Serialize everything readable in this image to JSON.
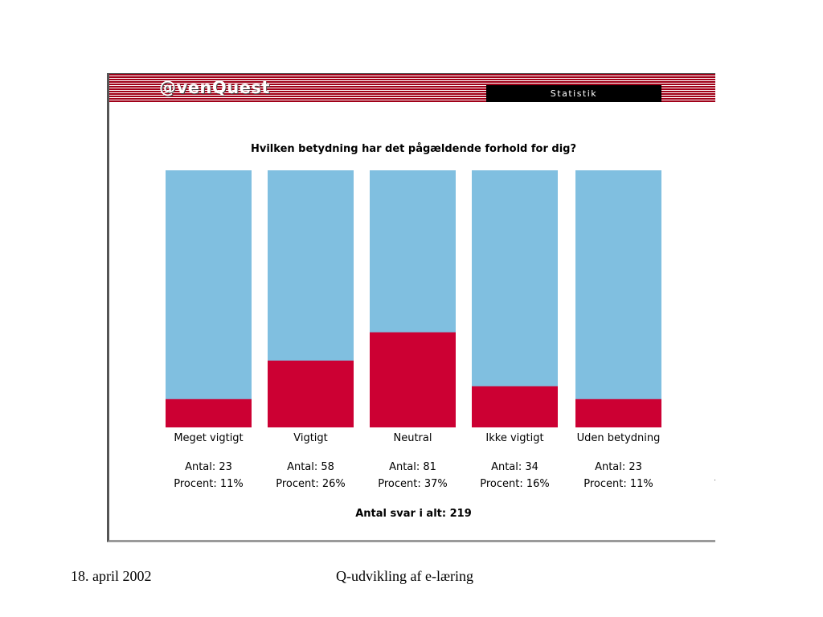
{
  "header": {
    "logo_text": "@venQuest",
    "tab_label": "Statistik"
  },
  "chart_data": {
    "type": "bar",
    "stacked_percent": true,
    "title": "Hvilken betydning har det pågældende forhold for dig?",
    "categories": [
      "Meget vigtigt",
      "Vigtigt",
      "Neutral",
      "Ikke vigtigt",
      "Uden betydning"
    ],
    "values": [
      23,
      58,
      81,
      34,
      23
    ],
    "percents": [
      11,
      26,
      37,
      16,
      11
    ],
    "count_label": "Antal:",
    "percent_label": "Procent:",
    "total_label": "Antal svar i alt:",
    "total": 219,
    "ylim": [
      0,
      100
    ],
    "colors": {
      "value": "#cc0033",
      "remainder": "#80bfe0"
    }
  },
  "footer": {
    "date": "18. april 2002",
    "title": "Q-udvikling af e-læring"
  }
}
